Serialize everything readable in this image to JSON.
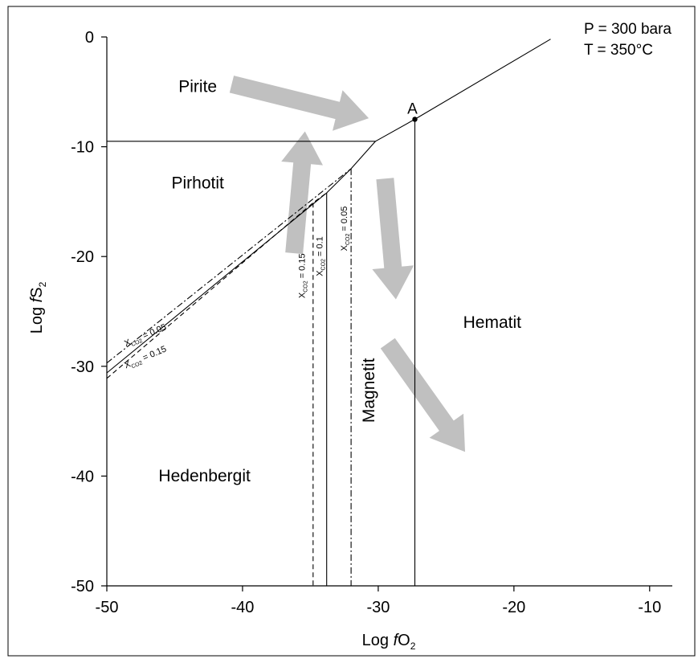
{
  "chart_data": {
    "type": "line",
    "xlabel_parts": [
      "Log ",
      "f",
      "O",
      "2"
    ],
    "ylabel_parts": [
      "Log ",
      "f",
      "S",
      "2"
    ],
    "xlim": [
      -50,
      -8
    ],
    "ylim": [
      -50,
      0
    ],
    "x_ticks": [
      -50,
      -40,
      -30,
      -20,
      -10
    ],
    "y_ticks": [
      0,
      -10,
      -20,
      -30,
      -40,
      -50
    ],
    "x_tick_labels": [
      "-50",
      "-40",
      "-30",
      "-20",
      "-10"
    ],
    "y_tick_labels": [
      "0",
      "-10",
      "-20",
      "-30",
      "-40",
      "-50"
    ],
    "grid": false,
    "conditions": [
      "P = 300 bara",
      "T = 350°C"
    ],
    "point_label": {
      "text": "A",
      "x": -27.3,
      "y": -7.5
    },
    "regions": [
      {
        "label": "Pirite",
        "x": -43.3,
        "y": -5
      },
      {
        "label": "Pirhotit",
        "x": -43.3,
        "y": -13.8
      },
      {
        "label": "Hedenbergit",
        "x": -42.8,
        "y": -40.5
      },
      {
        "label": "Magnetit",
        "x": -30.3,
        "y": -32.2,
        "rotate": -90
      },
      {
        "label": "Hematit",
        "x": -21.6,
        "y": -26.5
      }
    ],
    "boundaries": [
      {
        "name": "pirite-pirhotit",
        "style": "solid",
        "points": [
          [
            -50,
            -9.5
          ],
          [
            -30.2,
            -9.5
          ]
        ]
      },
      {
        "name": "pirite-magnetit",
        "style": "solid",
        "points": [
          [
            -30.2,
            -9.5
          ],
          [
            -27.3,
            -7.5
          ]
        ]
      },
      {
        "name": "pirite-hematit",
        "style": "solid",
        "points": [
          [
            -27.3,
            -7.5
          ],
          [
            -17.3,
            -0.2
          ]
        ]
      },
      {
        "name": "pirhotit-magnetit",
        "style": "solid",
        "points": [
          [
            -30.2,
            -9.5
          ],
          [
            -32,
            -12
          ]
        ]
      },
      {
        "name": "magnetit-hematit",
        "style": "solid",
        "points": [
          [
            -27.3,
            -7.5
          ],
          [
            -27.3,
            -50
          ]
        ]
      },
      {
        "name": "pirhotit-hedenbergit-0.1",
        "style": "solid",
        "points": [
          [
            -50,
            -30.6
          ],
          [
            -33.8,
            -14.2
          ],
          [
            -32,
            -12
          ]
        ]
      },
      {
        "name": "pirhotit-hedenbergit-0.05",
        "style": "dashdot",
        "points": [
          [
            -50,
            -29.7
          ],
          [
            -32,
            -12
          ]
        ]
      },
      {
        "name": "pirhotit-hedenbergit-0.15",
        "style": "dashed",
        "points": [
          [
            -50,
            -31.1
          ],
          [
            -34.8,
            -15.1
          ],
          [
            -33.8,
            -14.2
          ]
        ]
      },
      {
        "name": "hedenbergit-magnetit-0.1",
        "style": "solid",
        "points": [
          [
            -33.8,
            -14.2
          ],
          [
            -33.8,
            -50
          ]
        ]
      },
      {
        "name": "hedenbergit-magnetit-0.15",
        "style": "dashed",
        "points": [
          [
            -34.8,
            -15.1
          ],
          [
            -34.8,
            -50
          ]
        ]
      },
      {
        "name": "hedenbergit-magnetit-0.05",
        "style": "dashdot",
        "points": [
          [
            -32,
            -12
          ],
          [
            -32,
            -50
          ]
        ]
      }
    ],
    "line_labels": [
      {
        "main": "X",
        "sub": "CO2",
        "value": " = 0.05",
        "x": -48.6,
        "y": -28.2,
        "angle": -23
      },
      {
        "main": "X",
        "sub": "CO2",
        "value": " = 0.15",
        "x": -48.6,
        "y": -30.2,
        "angle": -23
      },
      {
        "main": "X",
        "sub": "CO2",
        "value": " = 0.15",
        "x": -35.4,
        "y": -23.8,
        "angle": -90
      },
      {
        "main": "X",
        "sub": "CO2",
        "value": " = 0.1",
        "x": -34.1,
        "y": -21.8,
        "angle": -90
      },
      {
        "main": "X",
        "sub": "CO2",
        "value": " = 0.05",
        "x": -32.3,
        "y": -19.5,
        "angle": -90
      }
    ],
    "arrows": [
      {
        "name": "arrow-to-a",
        "from": [
          -40.8,
          -4.3
        ],
        "to": [
          -30.7,
          -7.4
        ],
        "color": "#c0c0c0"
      },
      {
        "name": "arrow-up",
        "from": [
          -36.2,
          -19.7
        ],
        "to": [
          -35.4,
          -8.6
        ],
        "color": "#c0c0c0"
      },
      {
        "name": "arrow-down-short",
        "from": [
          -29.5,
          -12.9
        ],
        "to": [
          -28.7,
          -23.9
        ],
        "color": "#c0c0c0"
      },
      {
        "name": "arrow-down-right",
        "from": [
          -29.3,
          -27.9
        ],
        "to": [
          -23.6,
          -37.8
        ],
        "color": "#c0c0c0"
      }
    ]
  }
}
